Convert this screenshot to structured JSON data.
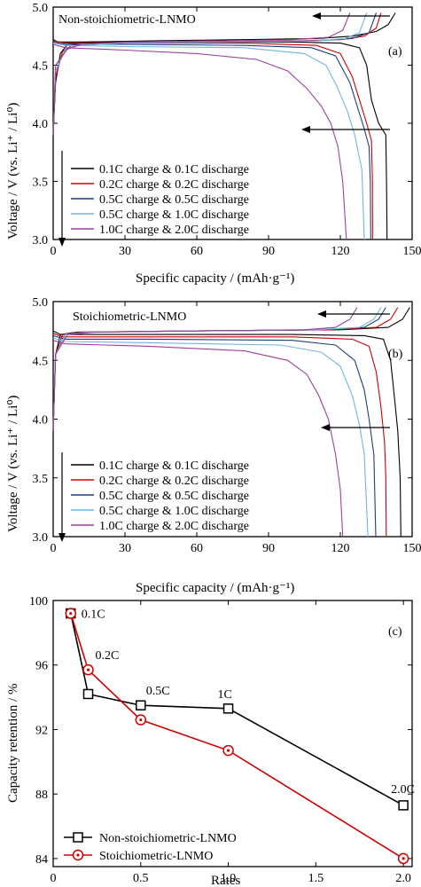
{
  "chart_data": [
    {
      "type": "line",
      "panel_label": "(a)",
      "title": "Non-stoichiometric-LNMO",
      "xlabel": "Specific capacity / (mAh·g⁻¹)",
      "ylabel": "Voltage / V (vs. Li⁺ / Li⁰)",
      "xlim": [
        0,
        150
      ],
      "ylim": [
        3.0,
        5.0
      ],
      "xticks": [
        "0",
        "30",
        "60",
        "90",
        "120",
        "150"
      ],
      "yticks": [
        "3.0",
        "3.5",
        "4.0",
        "4.5",
        "5.0"
      ],
      "legend_position": "bottom-left",
      "series": [
        {
          "name": "0.1C charge & 0.1C discharge",
          "color": "#000000",
          "charge": [
            [
              0,
              3.9
            ],
            [
              1,
              4.35
            ],
            [
              3,
              4.6
            ],
            [
              6,
              4.68
            ],
            [
              15,
              4.7
            ],
            [
              40,
              4.71
            ],
            [
              80,
              4.72
            ],
            [
              110,
              4.73
            ],
            [
              125,
              4.75
            ],
            [
              135,
              4.79
            ],
            [
              140,
              4.85
            ],
            [
              143,
              4.95
            ]
          ],
          "discharge": [
            [
              0,
              4.72
            ],
            [
              2,
              4.7
            ],
            [
              20,
              4.7
            ],
            [
              60,
              4.7
            ],
            [
              100,
              4.7
            ],
            [
              120,
              4.69
            ],
            [
              128,
              4.65
            ],
            [
              131,
              4.5
            ],
            [
              133,
              4.2
            ],
            [
              136,
              4.0
            ],
            [
              139,
              3.9
            ],
            [
              139.3,
              3.5
            ],
            [
              139.5,
              3.0
            ]
          ]
        },
        {
          "name": "0.2C charge & 0.2C discharge",
          "color": "#d00000",
          "charge": [
            [
              0,
              3.9
            ],
            [
              1,
              4.4
            ],
            [
              4,
              4.62
            ],
            [
              8,
              4.67
            ],
            [
              20,
              4.69
            ],
            [
              60,
              4.7
            ],
            [
              100,
              4.71
            ],
            [
              120,
              4.72
            ],
            [
              130,
              4.75
            ],
            [
              135,
              4.82
            ],
            [
              137,
              4.95
            ]
          ],
          "discharge": [
            [
              0,
              4.71
            ],
            [
              5,
              4.69
            ],
            [
              30,
              4.69
            ],
            [
              80,
              4.69
            ],
            [
              110,
              4.67
            ],
            [
              120,
              4.6
            ],
            [
              125,
              4.4
            ],
            [
              128,
              4.2
            ],
            [
              131,
              4.0
            ],
            [
              133,
              3.85
            ],
            [
              133.4,
              3.5
            ],
            [
              133.5,
              3.0
            ]
          ]
        },
        {
          "name": "0.5C charge & 0.5C discharge",
          "color": "#1f3f7f",
          "charge": [
            [
              0,
              3.9
            ],
            [
              1,
              4.45
            ],
            [
              5,
              4.63
            ],
            [
              10,
              4.67
            ],
            [
              30,
              4.69
            ],
            [
              70,
              4.7
            ],
            [
              110,
              4.71
            ],
            [
              125,
              4.73
            ],
            [
              132,
              4.78
            ],
            [
              135,
              4.95
            ]
          ],
          "discharge": [
            [
              0,
              4.7
            ],
            [
              5,
              4.68
            ],
            [
              30,
              4.68
            ],
            [
              80,
              4.67
            ],
            [
              108,
              4.65
            ],
            [
              118,
              4.58
            ],
            [
              124,
              4.35
            ],
            [
              127,
              4.15
            ],
            [
              130,
              3.95
            ],
            [
              132,
              3.8
            ],
            [
              132.5,
              3.5
            ],
            [
              132.7,
              3.0
            ]
          ]
        },
        {
          "name": "0.5C charge & 1.0C discharge",
          "color": "#6fb7e0",
          "charge": [
            [
              0,
              3.9
            ],
            [
              1,
              4.45
            ],
            [
              5,
              4.63
            ],
            [
              10,
              4.67
            ],
            [
              30,
              4.69
            ],
            [
              70,
              4.7
            ],
            [
              110,
              4.71
            ],
            [
              122,
              4.73
            ],
            [
              128,
              4.78
            ],
            [
              131,
              4.95
            ]
          ],
          "discharge": [
            [
              0,
              4.69
            ],
            [
              5,
              4.67
            ],
            [
              30,
              4.66
            ],
            [
              80,
              4.65
            ],
            [
              105,
              4.6
            ],
            [
              114,
              4.5
            ],
            [
              119,
              4.3
            ],
            [
              123,
              4.1
            ],
            [
              126,
              3.9
            ],
            [
              129,
              3.6
            ],
            [
              130,
              3.0
            ]
          ]
        },
        {
          "name": "1.0C charge & 2.0C discharge",
          "color": "#9c3fa0",
          "charge": [
            [
              0,
              3.9
            ],
            [
              1,
              4.5
            ],
            [
              6,
              4.64
            ],
            [
              12,
              4.68
            ],
            [
              30,
              4.7
            ],
            [
              70,
              4.71
            ],
            [
              100,
              4.72
            ],
            [
              115,
              4.74
            ],
            [
              121,
              4.8
            ],
            [
              124,
              4.95
            ]
          ],
          "discharge": [
            [
              0,
              4.68
            ],
            [
              5,
              4.65
            ],
            [
              30,
              4.63
            ],
            [
              60,
              4.6
            ],
            [
              85,
              4.55
            ],
            [
              98,
              4.45
            ],
            [
              106,
              4.3
            ],
            [
              112,
              4.15
            ],
            [
              116,
              4.0
            ],
            [
              119,
              3.8
            ],
            [
              121,
              3.5
            ],
            [
              122.5,
              3.0
            ]
          ]
        }
      ]
    },
    {
      "type": "line",
      "panel_label": "(b)",
      "title": "Stoichiometric-LNMO",
      "xlabel": "Specific capacity / (mAh·g⁻¹)",
      "ylabel": "Voltage / V (vs. Li⁺ / Li⁰)",
      "xlim": [
        0,
        150
      ],
      "ylim": [
        3.0,
        5.0
      ],
      "xticks": [
        "0",
        "30",
        "60",
        "90",
        "120",
        "150"
      ],
      "yticks": [
        "3.0",
        "3.5",
        "4.0",
        "4.5",
        "5.0"
      ],
      "legend_position": "bottom-left",
      "series": [
        {
          "name": "0.1C charge & 0.1C discharge",
          "color": "#000000",
          "charge": [
            [
              0,
              3.9
            ],
            [
              1,
              4.55
            ],
            [
              3,
              4.72
            ],
            [
              10,
              4.74
            ],
            [
              60,
              4.75
            ],
            [
              120,
              4.76
            ],
            [
              140,
              4.78
            ],
            [
              146,
              4.85
            ],
            [
              149,
              4.95
            ]
          ],
          "discharge": [
            [
              0,
              4.75
            ],
            [
              3,
              4.72
            ],
            [
              30,
              4.72
            ],
            [
              100,
              4.72
            ],
            [
              130,
              4.71
            ],
            [
              138,
              4.68
            ],
            [
              141,
              4.5
            ],
            [
              142.5,
              4.2
            ],
            [
              144,
              3.9
            ],
            [
              145,
              3.5
            ],
            [
              145.3,
              3.0
            ]
          ]
        },
        {
          "name": "0.2C charge & 0.2C discharge",
          "color": "#d00000",
          "charge": [
            [
              0,
              3.9
            ],
            [
              1,
              4.55
            ],
            [
              4,
              4.72
            ],
            [
              12,
              4.74
            ],
            [
              60,
              4.75
            ],
            [
              115,
              4.76
            ],
            [
              135,
              4.78
            ],
            [
              141,
              4.85
            ],
            [
              144,
              4.95
            ]
          ],
          "discharge": [
            [
              0,
              4.73
            ],
            [
              4,
              4.7
            ],
            [
              40,
              4.7
            ],
            [
              100,
              4.7
            ],
            [
              125,
              4.68
            ],
            [
              132,
              4.62
            ],
            [
              135,
              4.4
            ],
            [
              137,
              4.1
            ],
            [
              138.5,
              3.8
            ],
            [
              139,
              3.5
            ],
            [
              139.2,
              3.0
            ]
          ]
        },
        {
          "name": "0.5C charge & 0.5C discharge",
          "color": "#1f3f7f",
          "charge": [
            [
              0,
              3.9
            ],
            [
              1,
              4.55
            ],
            [
              5,
              4.72
            ],
            [
              15,
              4.74
            ],
            [
              60,
              4.75
            ],
            [
              110,
              4.76
            ],
            [
              130,
              4.78
            ],
            [
              136,
              4.85
            ],
            [
              139,
              4.95
            ]
          ],
          "discharge": [
            [
              0,
              4.71
            ],
            [
              5,
              4.68
            ],
            [
              40,
              4.68
            ],
            [
              100,
              4.67
            ],
            [
              118,
              4.63
            ],
            [
              126,
              4.5
            ],
            [
              130,
              4.25
            ],
            [
              132,
              4.0
            ],
            [
              134,
              3.7
            ],
            [
              134.8,
              3.0
            ]
          ]
        },
        {
          "name": "0.5C charge & 1.0C discharge",
          "color": "#6fb7e0",
          "charge": [
            [
              0,
              3.9
            ],
            [
              1,
              4.55
            ],
            [
              5,
              4.72
            ],
            [
              15,
              4.74
            ],
            [
              60,
              4.75
            ],
            [
              110,
              4.76
            ],
            [
              128,
              4.78
            ],
            [
              134,
              4.85
            ],
            [
              137,
              4.95
            ]
          ],
          "discharge": [
            [
              0,
              4.69
            ],
            [
              5,
              4.66
            ],
            [
              40,
              4.65
            ],
            [
              95,
              4.63
            ],
            [
              112,
              4.57
            ],
            [
              120,
              4.45
            ],
            [
              125,
              4.2
            ],
            [
              128,
              3.95
            ],
            [
              130,
              3.7
            ],
            [
              131.5,
              3.0
            ]
          ]
        },
        {
          "name": "1.0C charge & 2.0C discharge",
          "color": "#9c3fa0",
          "charge": [
            [
              0,
              3.9
            ],
            [
              1,
              4.55
            ],
            [
              6,
              4.72
            ],
            [
              18,
              4.74
            ],
            [
              60,
              4.75
            ],
            [
              105,
              4.76
            ],
            [
              118,
              4.78
            ],
            [
              124,
              4.85
            ],
            [
              127,
              4.95
            ]
          ],
          "discharge": [
            [
              0,
              4.67
            ],
            [
              5,
              4.64
            ],
            [
              40,
              4.62
            ],
            [
              80,
              4.58
            ],
            [
              98,
              4.5
            ],
            [
              106,
              4.38
            ],
            [
              111,
              4.2
            ],
            [
              115,
              4.0
            ],
            [
              118,
              3.7
            ],
            [
              120,
              3.4
            ],
            [
              121,
              3.0
            ]
          ]
        }
      ]
    },
    {
      "type": "line",
      "panel_label": "(c)",
      "xlabel": "Rates",
      "ylabel": "Capacity retention / %",
      "xlim": [
        0,
        2.05
      ],
      "ylim": [
        83.5,
        100
      ],
      "xticks": [
        "0",
        "0.5",
        "1.0",
        "1.5",
        "2.0"
      ],
      "yticks": [
        "84",
        "88",
        "92",
        "96",
        "100"
      ],
      "legend_position": "bottom-left",
      "rate_labels": [
        "0.1C",
        "0.2C",
        "0.5C",
        "1C",
        "2.0C"
      ],
      "series": [
        {
          "name": "Non-stoichiometric-LNMO",
          "color": "#000000",
          "marker": "square",
          "x": [
            0.1,
            0.2,
            0.5,
            1.0,
            2.0
          ],
          "y": [
            99.2,
            94.2,
            93.5,
            93.3,
            87.3
          ]
        },
        {
          "name": "Stoichiometric-LNMO",
          "color": "#d00000",
          "marker": "circle",
          "x": [
            0.1,
            0.2,
            0.5,
            1.0,
            2.0
          ],
          "y": [
            99.2,
            95.7,
            92.6,
            90.7,
            84.0
          ]
        }
      ]
    }
  ]
}
